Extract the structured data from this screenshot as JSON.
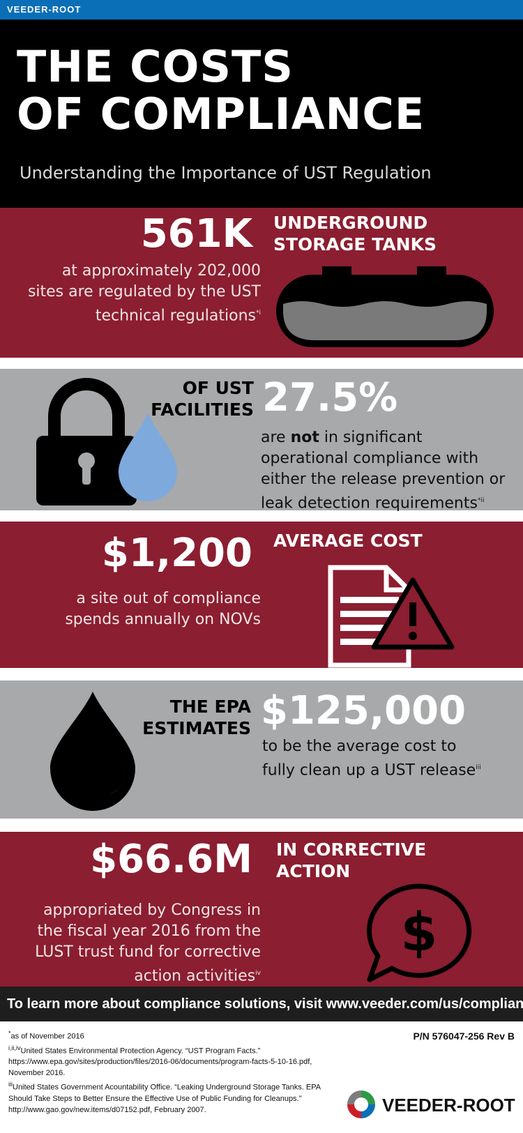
{
  "topbar": {
    "brand": "VEEDER-ROOT"
  },
  "hero": {
    "title_line1": "THE COSTS",
    "title_line2": "OF COMPLIANCE",
    "subtitle": "Understanding the Importance of UST Regulation"
  },
  "stat1": {
    "value": "561K",
    "label_line1": "UNDERGROUND",
    "label_line2": "STORAGE TANKS",
    "text_line1": "at approximately 202,000",
    "text_line2": "sites are regulated by the UST",
    "text_line3": "technical regulations",
    "footnote": "*i"
  },
  "stat2": {
    "label_line1": "OF UST",
    "label_line2": "FACILITIES",
    "value": "27.5%",
    "text_pre": "are ",
    "text_emph": "not",
    "text_line1_post": " in significant",
    "text_line2": "operational compliance with",
    "text_line3": "either the release prevention or",
    "text_line4": "leak detection requirements",
    "footnote": "*ii"
  },
  "stat3": {
    "value": "$1,200",
    "label": "AVERAGE COST",
    "text_line1": "a site out of compliance",
    "text_line2": "spends annually on NOVs"
  },
  "stat4": {
    "label_line1": "THE EPA",
    "label_line2": "ESTIMATES",
    "value": "$125,000",
    "text_line1": "to be the average cost to",
    "text_line2": "fully clean up a UST release",
    "footnote": "iii"
  },
  "stat5": {
    "value": "$66.6M",
    "label_line1": "IN CORRECTIVE",
    "label_line2": "ACTION",
    "text_line1": "appropriated by Congress in",
    "text_line2": "the fiscal year 2016 from the",
    "text_line3": "LUST trust fund for corrective",
    "text_line4": "action activities",
    "footnote": "iv"
  },
  "cta": {
    "text": "To learn more about compliance solutions, visit www.veeder.com/us/compliance"
  },
  "footnotes": {
    "n1_mark": "*",
    "n1": "as of November 2016",
    "n2_mark": "i,ii,iv",
    "n2_line1": "United States Environmental Protection Agency. “UST Program Facts.”",
    "n2_line2": "https://www.epa.gov/sites/production/files/2016-06/documents/program-facts-5-10-16.pdf,",
    "n2_line3": "November 2016.",
    "n3_mark": "iii",
    "n3_line1": "United States Government Acountability Office. “Leaking Underground Storage Tanks. EPA",
    "n3_line2": "Should Take Steps to Better Ensure the Effective Use of Public Funding for Cleanups.”",
    "n3_line3": "http://www.gao.gov/new.items/d07152.pdf, February 2007."
  },
  "part_number": "P/N 576047-256 Rev B",
  "logo": {
    "name": "VEEDER-ROOT"
  },
  "colors": {
    "accent_red": "#8b1e30",
    "panel_gray": "#a8a9ab",
    "top_blue": "#0b6fb7",
    "drop_blue": "#7ea9dd"
  }
}
